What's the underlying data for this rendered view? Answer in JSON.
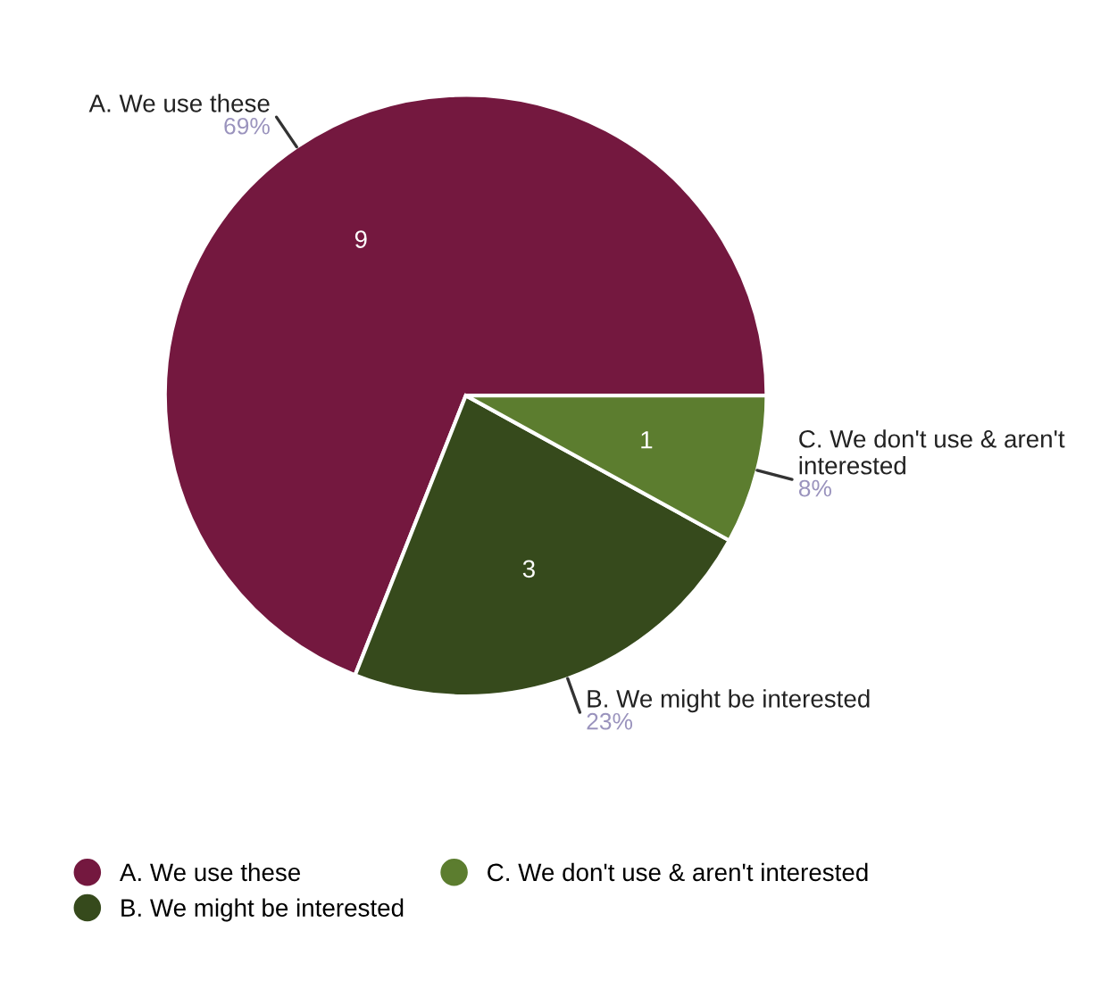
{
  "chart_data": {
    "type": "pie",
    "categories": [
      "A. We use these",
      "B. We might be interested",
      "C. We don't use & aren't interested"
    ],
    "values": [
      69,
      23,
      8
    ],
    "annotations": [
      {
        "text": "9",
        "x": "A. We use these"
      },
      {
        "text": "3",
        "x": "B. We might be interested"
      },
      {
        "text": "1",
        "x": "C. We don't use & aren't interested"
      }
    ],
    "colors": [
      "#74183f",
      "#364a1c",
      "#5c7d2f"
    ],
    "value_labels": [
      "69%",
      "23%",
      "8%"
    ],
    "legend": "bottom"
  }
}
